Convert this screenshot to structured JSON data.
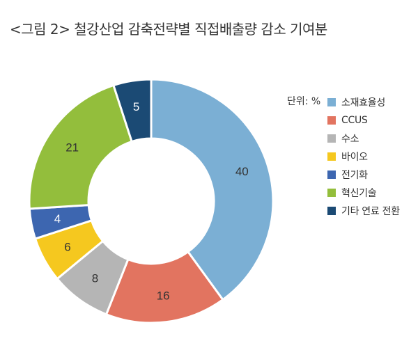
{
  "title": "<그림 2> 철강산업 감축전략별 직접배출량 감소 기여분",
  "unit_label": "단위: %",
  "chart_data": {
    "type": "pie",
    "title": "<그림 2> 철강산업 감축전략별 직접배출량 감소 기여분",
    "unit": "단위: %",
    "legend_position": "right",
    "categories": [
      "소재효율성",
      "CCUS",
      "수소",
      "바이오",
      "전기화",
      "혁신기술",
      "기타 연료 전환"
    ],
    "values": [
      40,
      16,
      8,
      6,
      4,
      21,
      5
    ],
    "colors": [
      "#7BAFD4",
      "#E27460",
      "#B5B5B5",
      "#F5C81F",
      "#3D66B0",
      "#93BE3C",
      "#1B4A74"
    ],
    "label_colors": [
      "#333333",
      "#333333",
      "#333333",
      "#333333",
      "#ffffff",
      "#333333",
      "#ffffff"
    ]
  }
}
